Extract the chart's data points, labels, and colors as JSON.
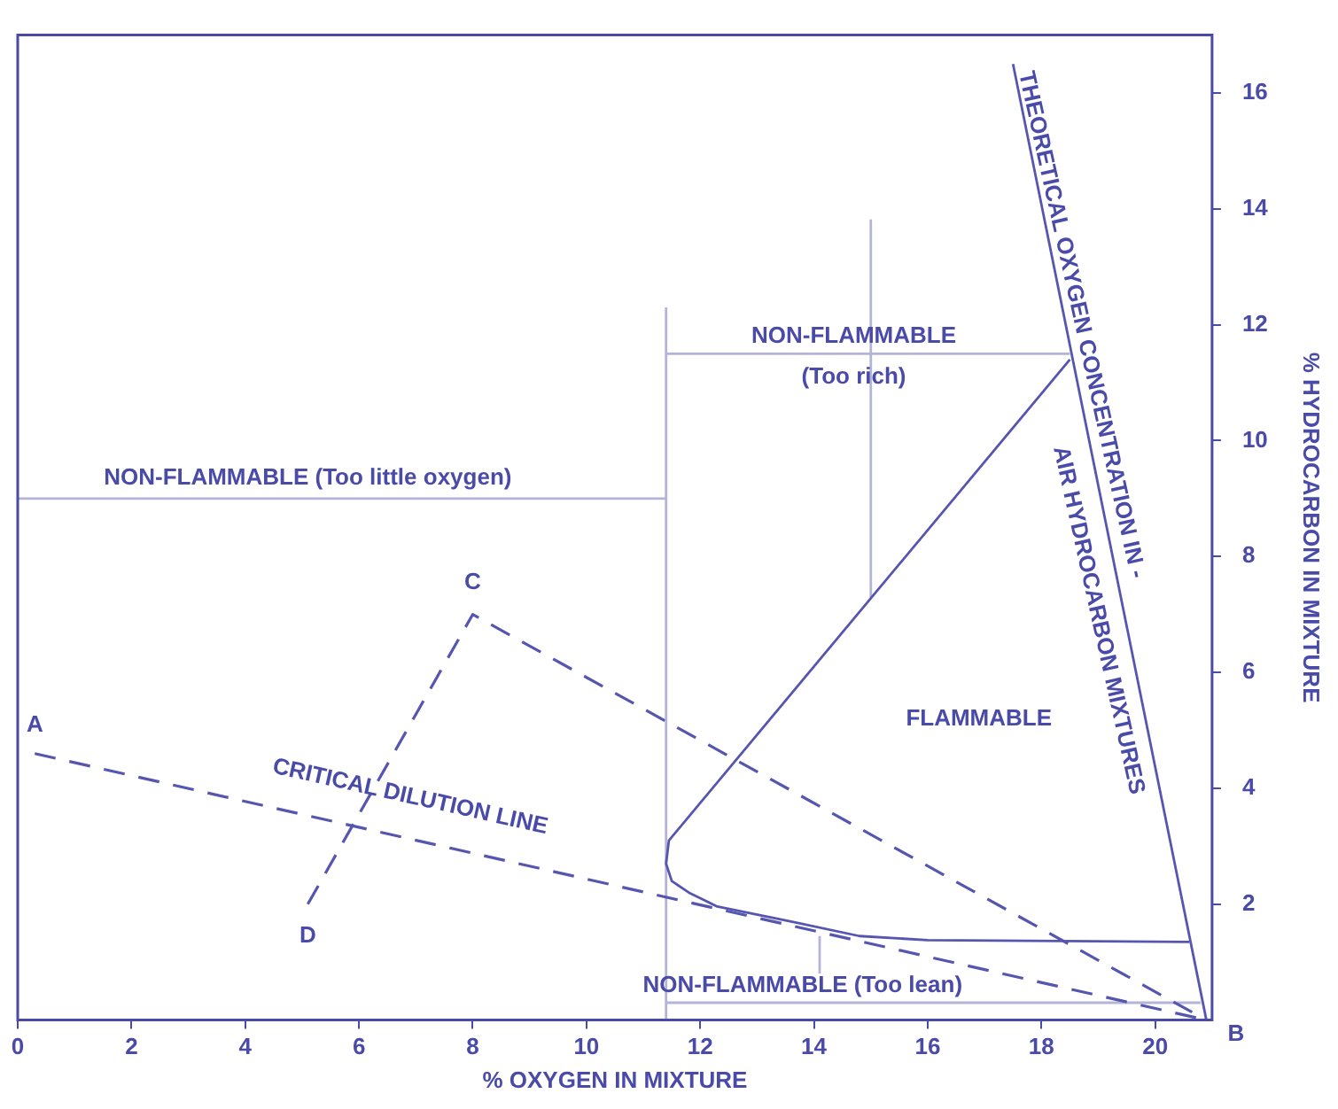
{
  "chart_data": {
    "type": "line",
    "xlabel": "% OXYGEN IN MIXTURE",
    "ylabel": "% HYDROCARBON IN MIXTURE",
    "xlim": [
      0,
      21
    ],
    "ylim": [
      0,
      17
    ],
    "xticks": [
      0,
      2,
      4,
      6,
      8,
      10,
      12,
      14,
      16,
      18,
      20
    ],
    "yticks": [
      2,
      4,
      6,
      8,
      10,
      12,
      14,
      16
    ],
    "grid": false,
    "legend": false,
    "marker": "none",
    "series": [
      {
        "color": "#5656b0",
        "line_style": "dashed",
        "x": [
          0.3,
          20.9
        ],
        "values": [
          4.6,
          0
        ]
      },
      {
        "color": "#5656b0",
        "line_style": "dashed",
        "x": [
          5.1,
          8.0,
          20.9
        ],
        "values": [
          2.0,
          7.0,
          0
        ]
      },
      {
        "color": "#5656b0",
        "x": [
          18.5,
          11.45,
          11.4,
          11.5,
          11.8,
          12.3,
          13.6,
          14.8,
          16,
          20.6
        ],
        "values": [
          11.4,
          3.1,
          2.7,
          2.4,
          2.2,
          1.96,
          1.7,
          1.45,
          1.38,
          1.35
        ]
      },
      {
        "color": "#5656b0",
        "x": [
          17.5,
          20.9
        ],
        "values": [
          16.5,
          0
        ]
      },
      {
        "color": "#b4b4d8",
        "x": [
          11.4,
          11.4
        ],
        "values": [
          0,
          12.3
        ]
      },
      {
        "color": "#b4b4d8",
        "x": [
          0,
          11.4
        ],
        "values": [
          9.0,
          9.0
        ]
      },
      {
        "color": "#b4b4d8",
        "x": [
          11.4,
          18.5
        ],
        "values": [
          11.5,
          11.5
        ]
      },
      {
        "color": "#b4b4d8",
        "x": [
          15,
          15
        ],
        "values": [
          13.8,
          7.3
        ]
      },
      {
        "color": "#b4b4d8",
        "x": [
          11.4,
          20.8
        ],
        "values": [
          0.3,
          0.3
        ]
      },
      {
        "color": "#b4b4d8",
        "x": [
          14.1,
          14.1
        ],
        "values": [
          0.8,
          1.45
        ]
      }
    ],
    "annotations": [
      "NON-FLAMMABLE (Too little oxygen)",
      "NON-FLAMMABLE",
      "(Too rich)",
      "FLAMMABLE",
      "NON-FLAMMABLE (Too lean)",
      {
        "text": "A",
        "x": 0.3,
        "y": 4.6
      },
      {
        "text": "B",
        "x": 20.9,
        "y": 0
      },
      {
        "text": "C",
        "x": 8.0,
        "y": 7.0
      },
      {
        "text": "D",
        "x": 5.1,
        "y": 2.0
      },
      "CRITICAL DILUTION LINE",
      "THEORETICAL OXYGEN CONCENTRATION IN -",
      "AIR HYDROCARBON MIXTURES"
    ]
  }
}
